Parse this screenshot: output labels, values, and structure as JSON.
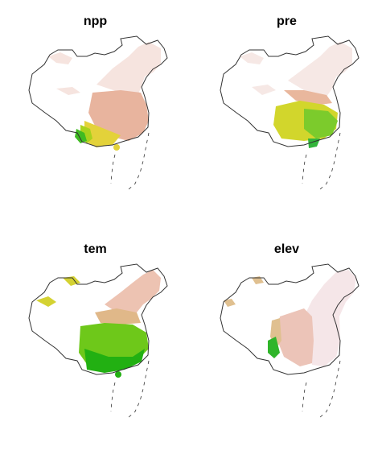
{
  "panels": [
    {
      "title": "npp",
      "palette": [
        "#f6e4df",
        "#e8b49e",
        "#e3d23a",
        "#a8d21c",
        "#3fbb22"
      ]
    },
    {
      "title": "pre",
      "palette": [
        "#f6e8e5",
        "#e9b79d",
        "#d2d62c",
        "#7ccb2c",
        "#33b53c"
      ]
    },
    {
      "title": "tem",
      "palette": [
        "#edc3b2",
        "#e0b889",
        "#d4d232",
        "#6ec81a",
        "#22b012"
      ]
    },
    {
      "title": "elev",
      "palette": [
        "#f5e6e8",
        "#ecc4b8",
        "#e0c090",
        "#b8d43a",
        "#2fb52a"
      ]
    }
  ],
  "colors": {
    "boundary": "#333333",
    "nodata": "#ffffff"
  }
}
